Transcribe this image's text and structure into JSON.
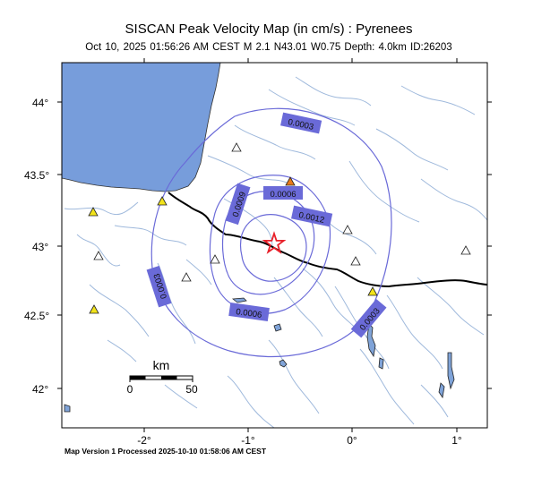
{
  "title": "SISCAN Peak Velocity Map (in cm/s) : Pyrenees",
  "subtitle": "Oct 10, 2025 01:56:26 AM CEST   M 2.1   N43.01 W0.75   Depth: 4.0km   ID:26203",
  "footer": "Map Version 1 Processed 2025-10-10 01:58:06 AM CEST",
  "map": {
    "lat_ticks": [
      "44°",
      "43.5°",
      "43°",
      "42.5°",
      "42°"
    ],
    "lon_ticks": [
      "-2°",
      "-1°",
      "0°",
      "1°"
    ],
    "contour_labels": [
      "0.0003",
      "0.0006",
      "0.0009",
      "0.0012",
      "0.0003",
      "0.0006",
      "0.0003"
    ],
    "scale": {
      "unit": "km",
      "start": "0",
      "end": "50"
    },
    "epicenter": {
      "lat": 43.01,
      "lon": -0.75
    },
    "colors": {
      "ocean": "#779ddb",
      "land": "#ffffff",
      "rivers": "#9fb9dc",
      "contours": "#6a6ad8",
      "border": "#000000",
      "label_box": "#6a6ad8",
      "epicenter_star": "#e8202a",
      "station_yellow": "#f2e31a",
      "station_orange": "#e87a1a",
      "station_white": "#ffffff"
    },
    "icons": {
      "epicenter": "star-icon",
      "station": "triangle-icon"
    }
  }
}
